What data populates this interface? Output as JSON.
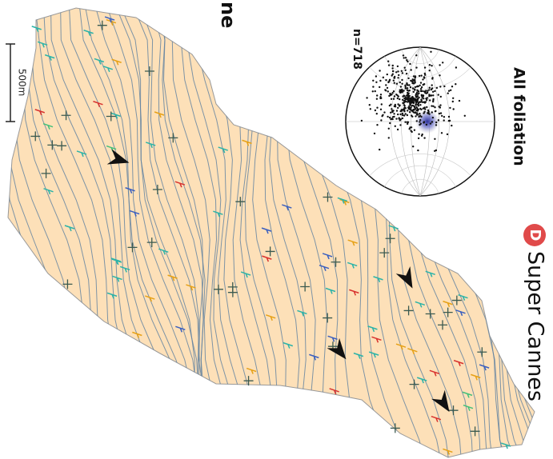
{
  "header": {
    "partial_title": "ne"
  },
  "scale_bar": {
    "label": "500m"
  },
  "stereonet": {
    "count_label": "n=718",
    "title": "All foliation"
  },
  "panel": {
    "letter": "D",
    "title": "Super Cannes"
  }
}
